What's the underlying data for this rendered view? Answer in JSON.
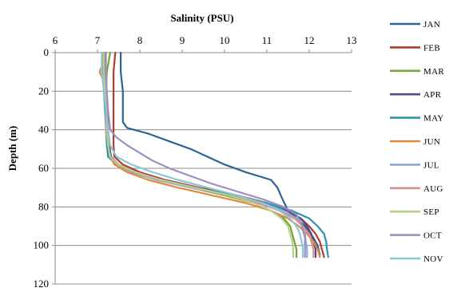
{
  "chart_data": {
    "type": "line",
    "orientation": "profile",
    "title": "",
    "xlabel": "Salinity (PSU)",
    "ylabel": "Depth (m)",
    "xaxis_position": "top",
    "y_inverted": true,
    "xlim": [
      6,
      13
    ],
    "ylim": [
      0,
      120
    ],
    "xticks": [
      "6",
      "7",
      "8",
      "9",
      "10",
      "11",
      "12",
      "13"
    ],
    "yticks": [
      "0",
      "20",
      "40",
      "60",
      "80",
      "100",
      "120"
    ],
    "grid": "horizontal",
    "legend_position": "right",
    "series": [
      {
        "name": "JAN",
        "color": "#2E6395",
        "points": [
          [
            7.55,
            0
          ],
          [
            7.55,
            10
          ],
          [
            7.6,
            20
          ],
          [
            7.6,
            30
          ],
          [
            7.6,
            36
          ],
          [
            7.7,
            39
          ],
          [
            8.2,
            42
          ],
          [
            8.7,
            46
          ],
          [
            9.2,
            50
          ],
          [
            9.6,
            54
          ],
          [
            10.0,
            58
          ],
          [
            10.5,
            62
          ],
          [
            11.1,
            66
          ],
          [
            11.25,
            70
          ],
          [
            11.35,
            75
          ],
          [
            11.5,
            82
          ],
          [
            11.9,
            90
          ],
          [
            12.1,
            96
          ],
          [
            12.2,
            100
          ],
          [
            12.25,
            105
          ]
        ]
      },
      {
        "name": "FEB",
        "color": "#B03D34",
        "points": [
          [
            7.42,
            0
          ],
          [
            7.38,
            10
          ],
          [
            7.38,
            20
          ],
          [
            7.38,
            30
          ],
          [
            7.38,
            40
          ],
          [
            7.38,
            48
          ],
          [
            7.4,
            54
          ],
          [
            7.6,
            58
          ],
          [
            8.0,
            62
          ],
          [
            8.6,
            66
          ],
          [
            9.4,
            70
          ],
          [
            10.3,
            74
          ],
          [
            11.0,
            78
          ],
          [
            11.5,
            82
          ],
          [
            11.8,
            86
          ],
          [
            12.0,
            90
          ],
          [
            12.15,
            94
          ],
          [
            12.25,
            98
          ],
          [
            12.3,
            102
          ],
          [
            12.35,
            106
          ]
        ]
      },
      {
        "name": "MAR",
        "color": "#78A33B",
        "points": [
          [
            7.3,
            0
          ],
          [
            7.22,
            10
          ],
          [
            7.2,
            20
          ],
          [
            7.2,
            30
          ],
          [
            7.22,
            40
          ],
          [
            7.25,
            48
          ],
          [
            7.3,
            54
          ],
          [
            7.45,
            58
          ],
          [
            7.8,
            62
          ],
          [
            8.4,
            66
          ],
          [
            9.2,
            70
          ],
          [
            10.0,
            74
          ],
          [
            10.7,
            78
          ],
          [
            11.1,
            82
          ],
          [
            11.4,
            86
          ],
          [
            11.55,
            90
          ],
          [
            11.6,
            94
          ],
          [
            11.65,
            98
          ],
          [
            11.7,
            102
          ],
          [
            11.7,
            106
          ]
        ]
      },
      {
        "name": "APR",
        "color": "#5B4585",
        "points": [
          [
            7.18,
            0
          ],
          [
            7.18,
            10
          ],
          [
            7.2,
            20
          ],
          [
            7.22,
            30
          ],
          [
            7.25,
            40
          ],
          [
            7.28,
            48
          ],
          [
            7.32,
            54
          ],
          [
            7.5,
            58
          ],
          [
            7.9,
            62
          ],
          [
            8.5,
            66
          ],
          [
            9.3,
            70
          ],
          [
            10.2,
            74
          ],
          [
            10.9,
            78
          ],
          [
            11.5,
            82
          ],
          [
            11.8,
            86
          ],
          [
            11.95,
            90
          ],
          [
            12.05,
            94
          ],
          [
            12.1,
            98
          ],
          [
            12.15,
            102
          ],
          [
            12.15,
            106
          ]
        ]
      },
      {
        "name": "MAY",
        "color": "#2E93AB",
        "points": [
          [
            7.12,
            0
          ],
          [
            7.12,
            10
          ],
          [
            7.15,
            20
          ],
          [
            7.18,
            30
          ],
          [
            7.2,
            40
          ],
          [
            7.22,
            48
          ],
          [
            7.25,
            54
          ],
          [
            7.45,
            58
          ],
          [
            7.85,
            62
          ],
          [
            8.5,
            66
          ],
          [
            9.3,
            70
          ],
          [
            10.2,
            74
          ],
          [
            11.0,
            78
          ],
          [
            11.6,
            82
          ],
          [
            12.0,
            86
          ],
          [
            12.2,
            90
          ],
          [
            12.35,
            94
          ],
          [
            12.4,
            98
          ],
          [
            12.42,
            102
          ],
          [
            12.45,
            106
          ]
        ]
      },
      {
        "name": "JUN",
        "color": "#E48936",
        "points": [
          [
            7.12,
            0
          ],
          [
            7.12,
            6
          ],
          [
            7.05,
            10
          ],
          [
            7.15,
            15
          ],
          [
            7.2,
            20
          ],
          [
            7.22,
            30
          ],
          [
            7.22,
            40
          ],
          [
            7.25,
            48
          ],
          [
            7.3,
            54
          ],
          [
            7.4,
            58
          ],
          [
            7.7,
            62
          ],
          [
            8.2,
            66
          ],
          [
            8.9,
            70
          ],
          [
            9.7,
            74
          ],
          [
            10.5,
            78
          ],
          [
            11.1,
            82
          ],
          [
            11.5,
            86
          ],
          [
            11.75,
            90
          ],
          [
            11.95,
            94
          ],
          [
            12.1,
            98
          ],
          [
            12.2,
            102
          ],
          [
            12.25,
            106
          ]
        ]
      },
      {
        "name": "JUL",
        "color": "#8EA8D9",
        "points": [
          [
            7.15,
            0
          ],
          [
            7.15,
            10
          ],
          [
            7.18,
            20
          ],
          [
            7.2,
            30
          ],
          [
            7.2,
            40
          ],
          [
            7.25,
            48
          ],
          [
            7.3,
            54
          ],
          [
            7.45,
            58
          ],
          [
            7.8,
            62
          ],
          [
            8.4,
            66
          ],
          [
            9.2,
            70
          ],
          [
            10.1,
            74
          ],
          [
            10.9,
            78
          ],
          [
            11.4,
            82
          ],
          [
            11.7,
            86
          ],
          [
            11.85,
            90
          ],
          [
            11.9,
            94
          ],
          [
            11.92,
            98
          ],
          [
            11.95,
            102
          ],
          [
            11.95,
            106
          ]
        ]
      },
      {
        "name": "AUG",
        "color": "#D8908C",
        "points": [
          [
            7.15,
            0
          ],
          [
            7.15,
            10
          ],
          [
            7.18,
            20
          ],
          [
            7.2,
            30
          ],
          [
            7.2,
            40
          ],
          [
            7.25,
            48
          ],
          [
            7.3,
            54
          ],
          [
            7.45,
            58
          ],
          [
            7.85,
            62
          ],
          [
            8.5,
            66
          ],
          [
            9.3,
            70
          ],
          [
            10.1,
            74
          ],
          [
            10.8,
            78
          ],
          [
            11.3,
            82
          ],
          [
            11.65,
            86
          ],
          [
            11.85,
            90
          ],
          [
            12.0,
            94
          ],
          [
            12.05,
            98
          ],
          [
            12.1,
            102
          ],
          [
            12.1,
            106
          ]
        ]
      },
      {
        "name": "SEP",
        "color": "#B5CF8D",
        "points": [
          [
            7.15,
            0
          ],
          [
            7.15,
            10
          ],
          [
            7.18,
            20
          ],
          [
            7.2,
            30
          ],
          [
            7.22,
            40
          ],
          [
            7.25,
            48
          ],
          [
            7.3,
            54
          ],
          [
            7.5,
            58
          ],
          [
            7.9,
            62
          ],
          [
            8.5,
            66
          ],
          [
            9.3,
            70
          ],
          [
            10.1,
            74
          ],
          [
            10.7,
            78
          ],
          [
            11.1,
            82
          ],
          [
            11.35,
            86
          ],
          [
            11.5,
            90
          ],
          [
            11.55,
            94
          ],
          [
            11.6,
            98
          ],
          [
            11.62,
            102
          ],
          [
            11.62,
            106
          ]
        ]
      },
      {
        "name": "OCT",
        "color": "#A08FC0",
        "points": [
          [
            7.2,
            0
          ],
          [
            7.2,
            10
          ],
          [
            7.22,
            20
          ],
          [
            7.25,
            30
          ],
          [
            7.3,
            40
          ],
          [
            7.45,
            44
          ],
          [
            7.7,
            48
          ],
          [
            8.0,
            52
          ],
          [
            8.3,
            56
          ],
          [
            8.7,
            60
          ],
          [
            9.2,
            64
          ],
          [
            9.7,
            68
          ],
          [
            10.3,
            72
          ],
          [
            10.9,
            76
          ],
          [
            11.4,
            80
          ],
          [
            11.7,
            84
          ],
          [
            11.8,
            88
          ],
          [
            11.85,
            92
          ],
          [
            11.9,
            96
          ],
          [
            11.9,
            100
          ],
          [
            11.9,
            106
          ]
        ]
      },
      {
        "name": "NOV",
        "color": "#8CC7D6",
        "points": [
          [
            7.1,
            0
          ],
          [
            7.1,
            10
          ],
          [
            7.15,
            20
          ],
          [
            7.2,
            30
          ],
          [
            7.25,
            40
          ],
          [
            7.3,
            48
          ],
          [
            7.45,
            54
          ],
          [
            7.8,
            58
          ],
          [
            8.3,
            62
          ],
          [
            8.9,
            66
          ],
          [
            9.6,
            70
          ],
          [
            10.3,
            74
          ],
          [
            10.9,
            78
          ],
          [
            11.3,
            82
          ],
          [
            11.55,
            86
          ],
          [
            11.7,
            90
          ],
          [
            11.78,
            94
          ],
          [
            11.82,
            98
          ],
          [
            11.85,
            102
          ],
          [
            11.85,
            106
          ]
        ]
      }
    ]
  }
}
